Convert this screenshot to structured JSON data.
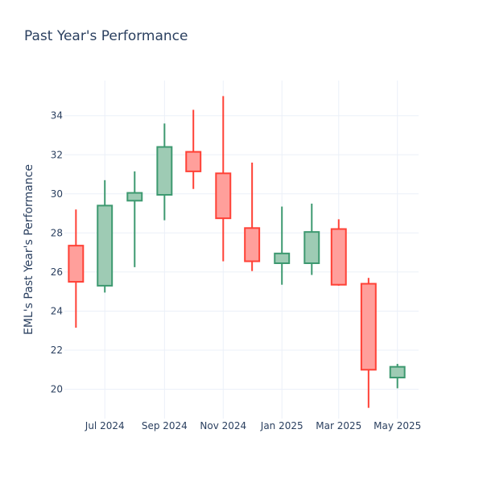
{
  "chart_data": {
    "type": "candlestick",
    "title": "Past Year's Performance",
    "xlabel": "",
    "ylabel": "EML's Past Year's Performance",
    "ylim": [
      18.5,
      35.8
    ],
    "xlim": [
      "2024-05-20",
      "2025-05-23"
    ],
    "grid": true,
    "increasing_color": "#3d9970",
    "increasing_fill": "#9ecbb4",
    "decreasing_color": "#ff4136",
    "decreasing_fill": "#ff9f9b",
    "y_ticks": [
      20,
      22,
      24,
      26,
      28,
      30,
      32,
      34
    ],
    "x_ticks": [
      {
        "date": "2024-07-01",
        "label": "Jul 2024"
      },
      {
        "date": "2024-09-01",
        "label": "Sep 2024"
      },
      {
        "date": "2024-11-01",
        "label": "Nov 2024"
      },
      {
        "date": "2025-01-01",
        "label": "Jan 2025"
      },
      {
        "date": "2025-03-01",
        "label": "Mar 2025"
      },
      {
        "date": "2025-05-01",
        "label": "May 2025"
      }
    ],
    "candles": [
      {
        "date": "2024-06-01",
        "open": 27.35,
        "high": 29.2,
        "low": 23.15,
        "close": 25.5
      },
      {
        "date": "2024-07-01",
        "open": 25.3,
        "high": 30.7,
        "low": 24.95,
        "close": 29.4
      },
      {
        "date": "2024-08-01",
        "open": 29.65,
        "high": 31.15,
        "low": 26.25,
        "close": 30.05
      },
      {
        "date": "2024-09-01",
        "open": 29.95,
        "high": 33.6,
        "low": 28.65,
        "close": 32.4
      },
      {
        "date": "2024-10-01",
        "open": 32.15,
        "high": 34.3,
        "low": 30.25,
        "close": 31.15
      },
      {
        "date": "2024-11-01",
        "open": 31.05,
        "high": 35.0,
        "low": 26.55,
        "close": 28.75
      },
      {
        "date": "2024-12-01",
        "open": 28.25,
        "high": 31.6,
        "low": 26.05,
        "close": 26.55
      },
      {
        "date": "2025-01-01",
        "open": 26.45,
        "high": 29.35,
        "low": 25.35,
        "close": 26.95
      },
      {
        "date": "2025-02-01",
        "open": 26.45,
        "high": 29.5,
        "low": 25.85,
        "close": 28.05
      },
      {
        "date": "2025-03-01",
        "open": 28.2,
        "high": 28.7,
        "low": 25.3,
        "close": 25.35
      },
      {
        "date": "2025-04-01",
        "open": 25.4,
        "high": 25.7,
        "low": 19.05,
        "close": 21.0
      },
      {
        "date": "2025-05-01",
        "open": 20.6,
        "high": 21.3,
        "low": 20.05,
        "close": 21.15
      }
    ]
  }
}
